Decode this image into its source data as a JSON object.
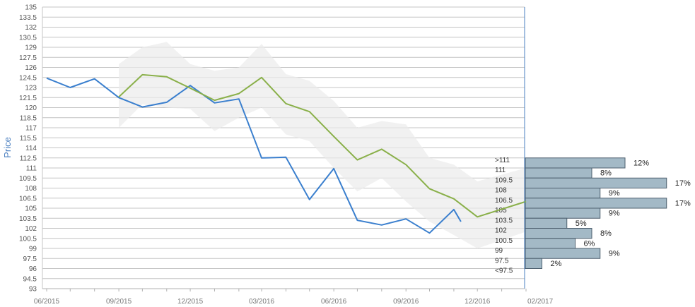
{
  "chart_data": {
    "type": "line",
    "ylabel": "Price",
    "ylim": [
      93,
      135
    ],
    "y_ticks": [
      "135",
      "133.5",
      "132",
      "130.5",
      "129",
      "127.5",
      "126",
      "124.5",
      "123",
      "121.5",
      "120",
      "118.5",
      "117",
      "115.5",
      "114",
      "112.5",
      "111",
      "109.5",
      "108",
      "106.5",
      "105",
      "103.5",
      "102",
      "100.5",
      "99",
      "97.5",
      "96",
      "94.5",
      "93"
    ],
    "x_ticks": [
      "06/2015",
      "09/2015",
      "12/2015",
      "03/2016",
      "06/2016",
      "09/2016",
      "12/2016",
      "02/2017"
    ],
    "grid": true,
    "series": [
      {
        "color": "#3a7fce",
        "points": [
          [
            "2015-06",
            124.4
          ],
          [
            "2015-07",
            123.0
          ],
          [
            "2015-08",
            124.3
          ],
          [
            "2015-09",
            121.5
          ],
          [
            "2015-10",
            120.1
          ],
          [
            "2015-11",
            120.8
          ],
          [
            "2015-12",
            123.3
          ],
          [
            "2016-01",
            120.7
          ],
          [
            "2016-02",
            121.3
          ],
          [
            "2016-03",
            112.5
          ],
          [
            "2016-04",
            112.6
          ],
          [
            "2016-05",
            106.3
          ],
          [
            "2016-06",
            110.9
          ],
          [
            "2016-07",
            103.2
          ],
          [
            "2016-08",
            102.5
          ],
          [
            "2016-09",
            103.4
          ],
          [
            "2016-10",
            101.3
          ],
          [
            "2016-11",
            104.8
          ],
          [
            "2016-11-10",
            103.0
          ]
        ]
      },
      {
        "color": "#8ab04a",
        "points": [
          [
            "2015-09",
            121.6
          ],
          [
            "2015-10",
            124.9
          ],
          [
            "2015-11",
            124.6
          ],
          [
            "2015-12",
            122.9
          ],
          [
            "2016-01",
            121.1
          ],
          [
            "2016-02",
            122.1
          ],
          [
            "2016-03",
            124.5
          ],
          [
            "2016-04",
            120.6
          ],
          [
            "2016-05",
            119.4
          ],
          [
            "2016-06",
            115.7
          ],
          [
            "2016-07",
            112.2
          ],
          [
            "2016-08",
            113.8
          ],
          [
            "2016-09",
            111.5
          ],
          [
            "2016-10",
            107.9
          ],
          [
            "2016-11",
            106.4
          ],
          [
            "2016-12",
            103.7
          ],
          [
            "2017-02",
            106.0
          ]
        ]
      }
    ],
    "band": {
      "color": "#ebebeb",
      "upper": [
        [
          "2015-09",
          126.5
        ],
        [
          "2015-10",
          129.0
        ],
        [
          "2015-11",
          129.8
        ],
        [
          "2015-12",
          126.5
        ],
        [
          "2016-01",
          125.5
        ],
        [
          "2016-02",
          126.0
        ],
        [
          "2016-03",
          129.5
        ],
        [
          "2016-04",
          125.0
        ],
        [
          "2016-05",
          124.0
        ],
        [
          "2016-06",
          121.0
        ],
        [
          "2016-07",
          117.0
        ],
        [
          "2016-08",
          118.0
        ],
        [
          "2016-09",
          117.5
        ],
        [
          "2016-10",
          112.5
        ],
        [
          "2016-11",
          111.5
        ],
        [
          "2016-12",
          109.0
        ],
        [
          "2017-02",
          111.0
        ]
      ],
      "lower": [
        [
          "2015-09",
          117.0
        ],
        [
          "2015-10",
          120.5
        ],
        [
          "2015-11",
          120.0
        ],
        [
          "2015-12",
          119.8
        ],
        [
          "2016-01",
          116.5
        ],
        [
          "2016-02",
          118.5
        ],
        [
          "2016-03",
          120.0
        ],
        [
          "2016-04",
          116.0
        ],
        [
          "2016-05",
          115.0
        ],
        [
          "2016-06",
          111.0
        ],
        [
          "2016-07",
          107.5
        ],
        [
          "2016-08",
          109.5
        ],
        [
          "2016-09",
          106.0
        ],
        [
          "2016-10",
          103.0
        ],
        [
          "2016-11",
          101.0
        ],
        [
          "2016-12",
          99.0
        ],
        [
          "2017-02",
          101.5
        ]
      ]
    },
    "histogram": {
      "color": "#a3b9c6",
      "buckets": [
        {
          "label": ">111",
          "pct": "12%",
          "value": 12,
          "y_low": 111,
          "y_high": 112.5
        },
        {
          "label": "111",
          "pct": "8%",
          "value": 8,
          "y_low": 109.5,
          "y_high": 111
        },
        {
          "label": "109.5",
          "pct": "17%",
          "value": 17,
          "y_low": 108,
          "y_high": 109.5
        },
        {
          "label": "108",
          "pct": "9%",
          "value": 9,
          "y_low": 106.5,
          "y_high": 108
        },
        {
          "label": "106.5",
          "pct": "17%",
          "value": 17,
          "y_low": 105,
          "y_high": 106.5
        },
        {
          "label": "105",
          "pct": "9%",
          "value": 9,
          "y_low": 103.5,
          "y_high": 105
        },
        {
          "label": "103.5",
          "pct": "5%",
          "value": 5,
          "y_low": 102,
          "y_high": 103.5
        },
        {
          "label": "102",
          "pct": "8%",
          "value": 8,
          "y_low": 100.5,
          "y_high": 102
        },
        {
          "label": "100.5",
          "pct": "6%",
          "value": 6,
          "y_low": 99,
          "y_high": 100.5
        },
        {
          "label": "99",
          "pct": "9%",
          "value": 9,
          "y_low": 97.5,
          "y_high": 99
        },
        {
          "label": "97.5",
          "pct": "2%",
          "value": 2,
          "y_low": 96,
          "y_high": 97.5
        },
        {
          "label": "<97.5",
          "pct": "",
          "value": 0,
          "y_low": 96,
          "y_high": 96
        }
      ]
    }
  }
}
